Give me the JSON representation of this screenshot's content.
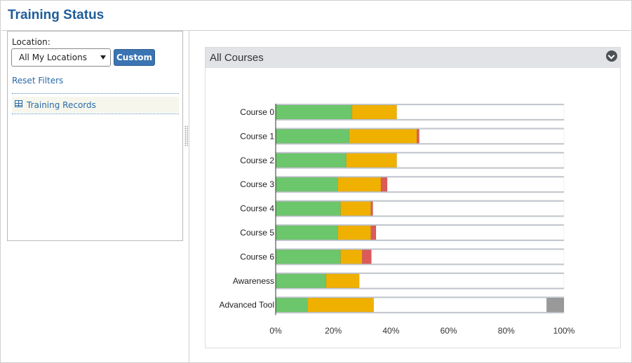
{
  "page": {
    "title": "Training Status"
  },
  "filters": {
    "location_label": "Location:",
    "location_value": "All My Locations",
    "custom_label": "Custom",
    "reset_label": "Reset Filters",
    "records_label": "Training Records"
  },
  "card": {
    "title": "All Courses"
  },
  "colors": {
    "complete": "#6cc66b",
    "in_progress": "#f0b000",
    "overdue": "#dc5a5a",
    "not_started": "#ffffff",
    "na": "#999999",
    "row_band": "#c5cad0"
  },
  "chart_data": {
    "type": "bar",
    "orientation": "horizontal",
    "stacked": true,
    "title": "",
    "xlabel": "",
    "ylabel": "",
    "xlim": [
      0,
      100
    ],
    "x_tick_labels": [
      "0%",
      "20%",
      "40%",
      "60%",
      "80%",
      "100%"
    ],
    "categories": [
      "Course 0",
      "Course 1",
      "Course 2",
      "Course 3",
      "Course 4",
      "Course 5",
      "Course 6",
      "Awareness",
      "Advanced Tool"
    ],
    "series": [
      {
        "key": "complete",
        "values": [
          26.5,
          25.5,
          24.5,
          21.5,
          22.5,
          21.5,
          22.5,
          17.5,
          11
        ]
      },
      {
        "key": "in_progress",
        "values": [
          15.5,
          23.5,
          17.5,
          15,
          10.5,
          11.5,
          7.5,
          11.5,
          23
        ]
      },
      {
        "key": "overdue",
        "values": [
          0,
          0.8,
          0,
          2.2,
          0.7,
          1.8,
          3.2,
          0,
          0
        ]
      },
      {
        "key": "not_started",
        "values": [
          58,
          50.2,
          58,
          61.3,
          66.3,
          65.2,
          66.8,
          71,
          60
        ]
      },
      {
        "key": "na",
        "values": [
          0,
          0,
          0,
          0,
          0,
          0,
          0,
          0,
          6
        ]
      }
    ]
  }
}
